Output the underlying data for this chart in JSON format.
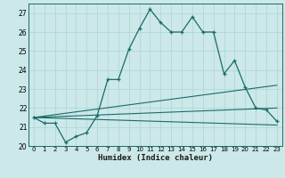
{
  "title": "",
  "xlabel": "Humidex (Indice chaleur)",
  "bg_color": "#cce8e8",
  "line_color": "#1a6b6b",
  "grid_color": "#b0d8d8",
  "xlim": [
    -0.5,
    23.5
  ],
  "ylim": [
    20,
    27.5
  ],
  "yticks": [
    20,
    21,
    22,
    23,
    24,
    25,
    26,
    27
  ],
  "xticks": [
    0,
    1,
    2,
    3,
    4,
    5,
    6,
    7,
    8,
    9,
    10,
    11,
    12,
    13,
    14,
    15,
    16,
    17,
    18,
    19,
    20,
    21,
    22,
    23
  ],
  "line1_x": [
    0,
    1,
    2,
    3,
    4,
    5,
    6,
    7,
    8,
    9,
    10,
    11,
    12,
    13,
    14,
    15,
    16,
    17,
    18,
    19,
    20,
    21,
    22,
    23
  ],
  "line1_y": [
    21.5,
    21.2,
    21.2,
    20.2,
    20.5,
    20.7,
    21.6,
    23.5,
    23.5,
    25.1,
    26.2,
    27.2,
    26.5,
    26.0,
    26.0,
    26.8,
    26.0,
    26.0,
    23.8,
    24.5,
    23.1,
    22.0,
    21.9,
    21.3
  ],
  "line2_x": [
    0,
    23
  ],
  "line2_y": [
    21.5,
    23.2
  ],
  "line3_x": [
    0,
    23
  ],
  "line3_y": [
    21.5,
    22.0
  ],
  "line4_x": [
    0,
    23
  ],
  "line4_y": [
    21.5,
    21.1
  ]
}
